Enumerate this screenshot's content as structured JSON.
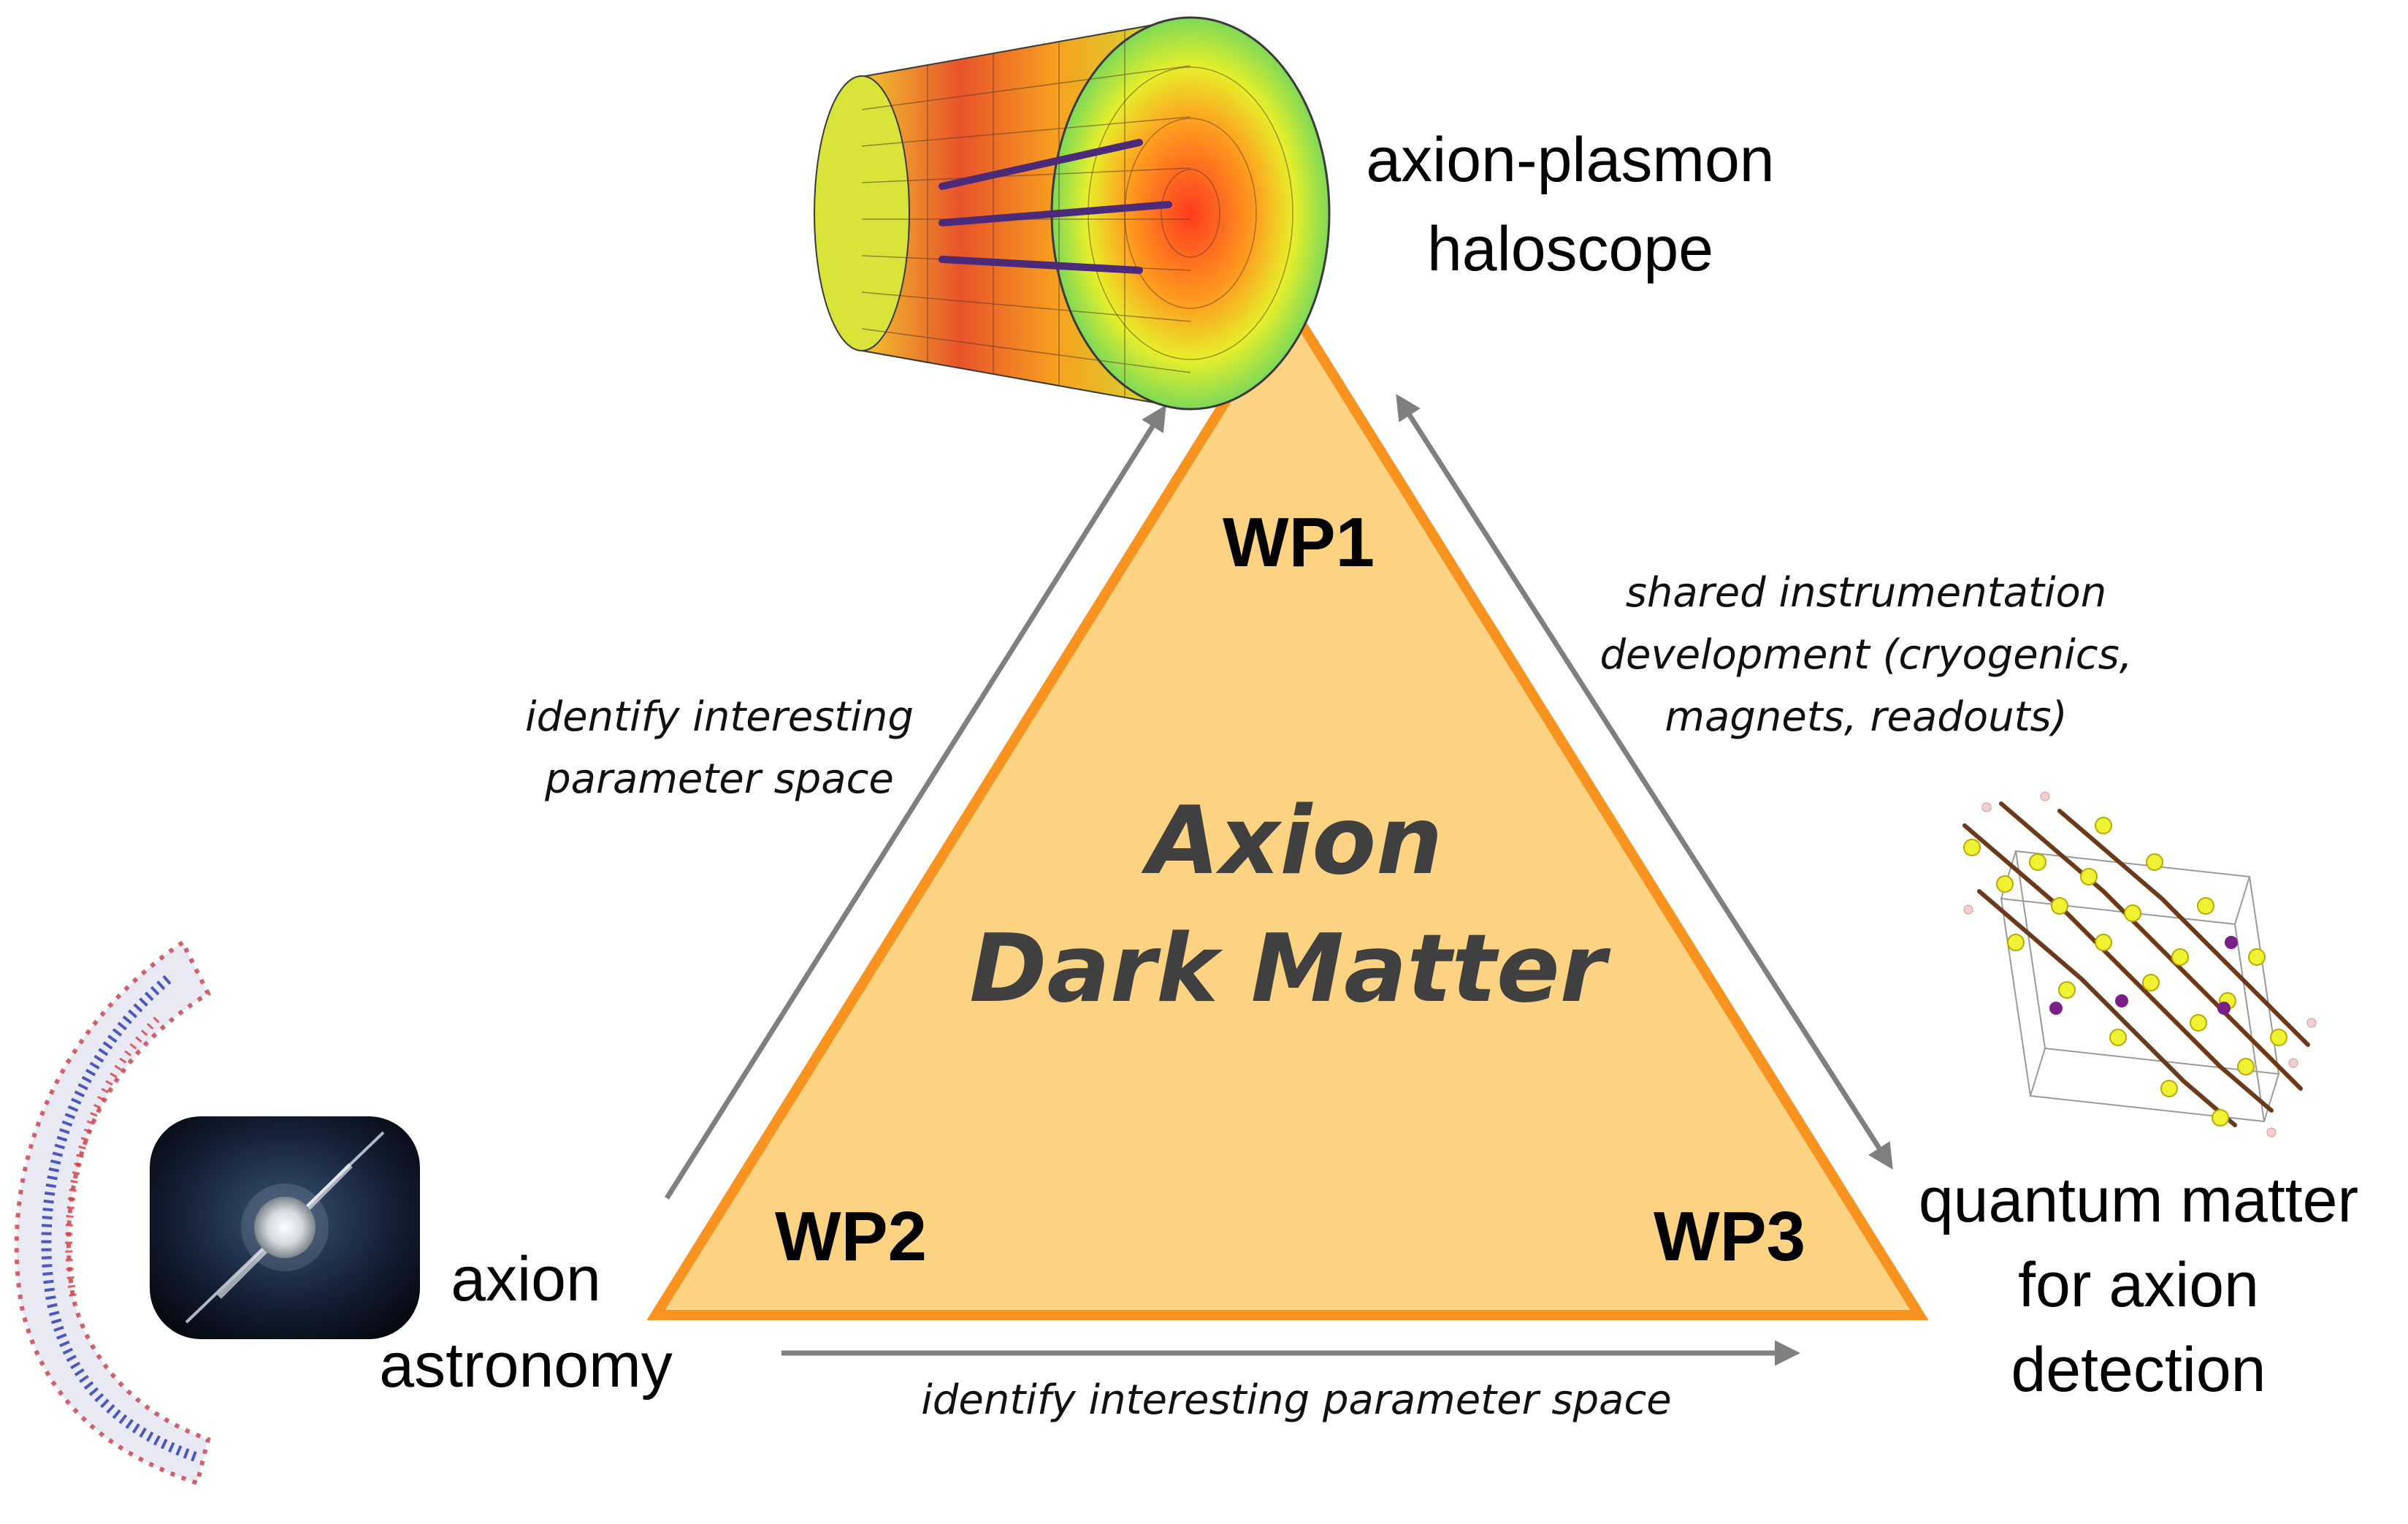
{
  "colors": {
    "triangle_fill": "#FCD283",
    "triangle_stroke": "#F7931E",
    "arrow": "#7f7f7f",
    "center_text": "#404040"
  },
  "center": {
    "line1": "Axion",
    "line2": "Dark Matter"
  },
  "nodes": {
    "top": {
      "tag": "WP1",
      "title_line1": "axion-plasmon",
      "title_line2": "haloscope",
      "icon": "cylindrical-haloscope-field-map"
    },
    "left": {
      "tag": "WP2",
      "title_line1": "axion",
      "title_line2": "astronomy",
      "icon": "neutron-star-pulsar"
    },
    "right": {
      "tag": "WP3",
      "title_line1": "quantum matter",
      "title_line2": "for axion",
      "title_line3": "detection",
      "icon": "crystal-lattice-structure"
    }
  },
  "edges": {
    "left_edge_label_line1": "identify interesting",
    "left_edge_label_line2": "parameter space",
    "right_edge_label_line1": "shared instrumentation",
    "right_edge_label_line2": "development (cryogenics,",
    "right_edge_label_line3": "magnets, readouts)",
    "bottom_edge_label": "identify interesting parameter space"
  }
}
